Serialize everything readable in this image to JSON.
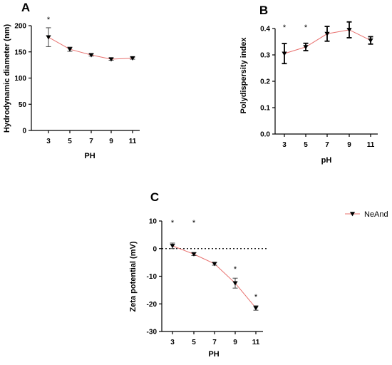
{
  "chart_data": [
    {
      "panel": "A",
      "type": "line",
      "xlabel": "PH",
      "ylabel": "Hydrodynamic diameter (nm)",
      "ylim": [
        0,
        200
      ],
      "y_ticks": [
        "0",
        "50",
        "100",
        "150",
        "200"
      ],
      "categories": [
        "3",
        "5",
        "7",
        "9",
        "11"
      ],
      "series": [
        {
          "values": [
            178,
            155,
            144,
            136,
            138
          ],
          "errors": [
            18,
            4,
            2,
            2,
            2
          ]
        }
      ],
      "significance": [
        "*",
        "",
        "",
        "",
        ""
      ],
      "line_color": "#e8706e",
      "marker": "inverted-triangle",
      "grid": false
    },
    {
      "panel": "B",
      "type": "line",
      "xlabel": "pH",
      "ylabel": "Polydispersity index",
      "ylim": [
        0,
        0.4
      ],
      "y_ticks": [
        "0.0",
        "0.1",
        "0.2",
        "0.3",
        "0.4"
      ],
      "categories": [
        "3",
        "5",
        "7",
        "9",
        "11"
      ],
      "series": [
        {
          "values": [
            0.305,
            0.33,
            0.38,
            0.395,
            0.355
          ],
          "errors": [
            0.038,
            0.014,
            0.028,
            0.03,
            0.014
          ]
        }
      ],
      "significance": [
        "*",
        "*",
        "",
        "",
        ""
      ],
      "line_color": "#e8706e",
      "marker": "inverted-triangle",
      "grid": false
    },
    {
      "panel": "C",
      "type": "line",
      "xlabel": "PH",
      "ylabel": "Zeta potential (mV)",
      "ylim": [
        -30,
        10
      ],
      "y_ticks": [
        "10",
        "0",
        "-10",
        "-20",
        "-30"
      ],
      "categories": [
        "3",
        "5",
        "7",
        "9",
        "11"
      ],
      "series": [
        {
          "name": "NeAnd",
          "values": [
            1,
            -2,
            -5.5,
            -12.5,
            -21.5
          ],
          "errors": [
            1,
            0.5,
            0.5,
            1.8,
            0.8
          ]
        }
      ],
      "significance": [
        "*",
        "*",
        "",
        "*",
        "*"
      ],
      "reference_line": 0,
      "legend_position": "top-right",
      "line_color": "#e8706e",
      "marker": "inverted-triangle",
      "grid": false
    }
  ]
}
